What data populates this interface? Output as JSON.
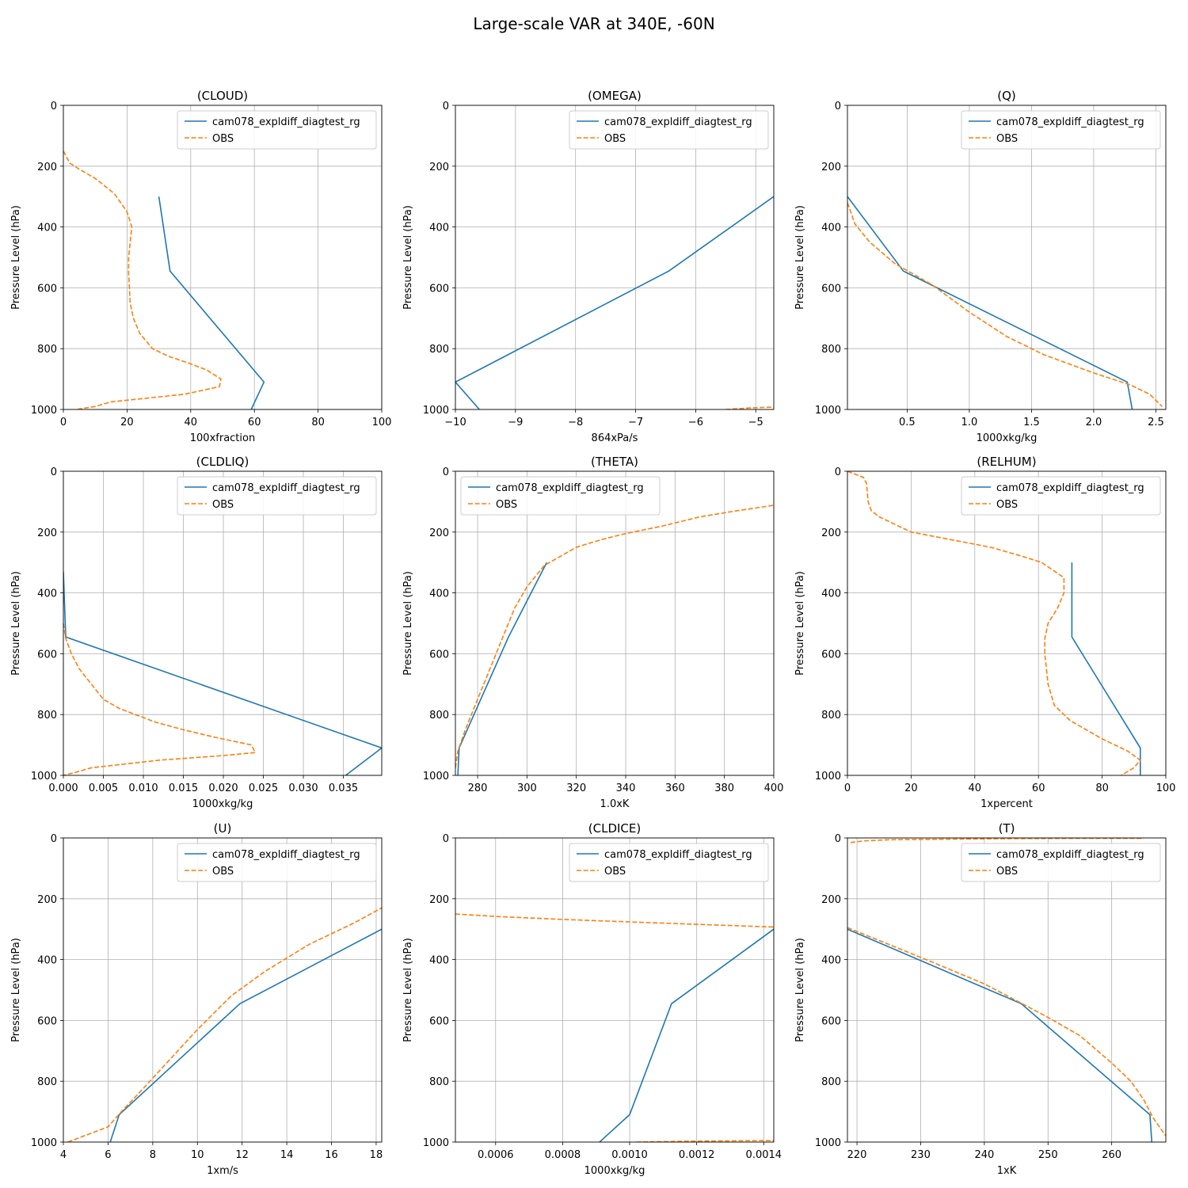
{
  "figure_title": "Large-scale VAR at 340E, -60N",
  "legend_labels": [
    "cam078_expldiff_diagtest_rg",
    "OBS"
  ],
  "colors": {
    "model": "#1f77b4",
    "obs": "#ff7f0e",
    "grid": "#b0b0b0"
  },
  "chart_data": [
    {
      "type": "line",
      "title": "(CLOUD)",
      "xlabel": "100xfraction",
      "ylabel": "Pressure Level (hPa)",
      "xlim": [
        0,
        100
      ],
      "ylim": [
        1000,
        0
      ],
      "xticks": [
        0,
        20,
        40,
        60,
        80,
        100
      ],
      "xtick_labels": [
        "0",
        "20",
        "40",
        "60",
        "80",
        "100"
      ],
      "yticks": [
        0,
        200,
        400,
        600,
        800,
        1000
      ],
      "ytick_labels": [
        "0",
        "200",
        "400",
        "600",
        "800",
        "1000"
      ],
      "legend": "upper right",
      "series": [
        {
          "name": "cam078_expldiff_diagtest_rg",
          "x": [
            30,
            33.5,
            63,
            59
          ],
          "y": [
            300,
            545,
            910,
            1000
          ]
        },
        {
          "name": "OBS",
          "x": [
            0,
            2,
            5,
            10,
            16,
            20,
            21.5,
            21,
            20.5,
            20.5,
            21,
            22,
            24,
            28,
            33,
            40,
            45,
            49.5,
            49,
            38,
            15,
            10,
            4
          ],
          "y": [
            150,
            190,
            210,
            240,
            290,
            350,
            400,
            450,
            500,
            550,
            650,
            700,
            750,
            800,
            825,
            850,
            870,
            900,
            925,
            950,
            975,
            990,
            1000
          ]
        }
      ]
    },
    {
      "type": "line",
      "title": "(OMEGA)",
      "xlabel": "864xPa/s",
      "ylabel": "Pressure Level (hPa)",
      "xlim": [
        -10,
        -4.7
      ],
      "ylim": [
        1000,
        0
      ],
      "xticks": [
        -10,
        -9,
        -8,
        -7,
        -6,
        -5
      ],
      "xtick_labels": [
        "−10",
        "−9",
        "−8",
        "−7",
        "−6",
        "−5"
      ],
      "yticks": [
        0,
        200,
        400,
        600,
        800,
        1000
      ],
      "ytick_labels": [
        "0",
        "200",
        "400",
        "600",
        "800",
        "1000"
      ],
      "legend": "upper right",
      "series": [
        {
          "name": "cam078_expldiff_diagtest_rg",
          "x": [
            -4.7,
            -6.45,
            -10,
            -9.6
          ],
          "y": [
            300,
            545,
            910,
            1000
          ]
        },
        {
          "name": "OBS",
          "x": [
            -5.5,
            -5.1,
            -4.7
          ],
          "y": [
            1000,
            995,
            992
          ]
        }
      ]
    },
    {
      "type": "line",
      "title": "(Q)",
      "xlabel": "1000xkg/kg",
      "ylabel": "Pressure Level (hPa)",
      "xlim": [
        0.02,
        2.58
      ],
      "ylim": [
        1000,
        0
      ],
      "xticks": [
        0.5,
        1.0,
        1.5,
        2.0,
        2.5
      ],
      "xtick_labels": [
        "0.5",
        "1.0",
        "1.5",
        "2.0",
        "2.5"
      ],
      "yticks": [
        0,
        200,
        400,
        600,
        800,
        1000
      ],
      "ytick_labels": [
        "0",
        "200",
        "400",
        "600",
        "800",
        "1000"
      ],
      "legend": "upper right",
      "series": [
        {
          "name": "cam078_expldiff_diagtest_rg",
          "x": [
            0.02,
            0.47,
            2.27,
            2.31
          ],
          "y": [
            300,
            545,
            910,
            1000
          ]
        },
        {
          "name": "OBS",
          "x": [
            0.02,
            0.08,
            0.2,
            0.4,
            0.7,
            1.0,
            1.3,
            1.6,
            2.0,
            2.3,
            2.45,
            2.55
          ],
          "y": [
            320,
            390,
            450,
            520,
            590,
            680,
            760,
            820,
            880,
            920,
            950,
            990
          ]
        }
      ]
    },
    {
      "type": "line",
      "title": "(CLDLIQ)",
      "xlabel": "1000xkg/kg",
      "ylabel": "Pressure Level (hPa)",
      "xlim": [
        0,
        0.0398
      ],
      "ylim": [
        1000,
        0
      ],
      "xticks": [
        0,
        0.005,
        0.01,
        0.015,
        0.02,
        0.025,
        0.03,
        0.035
      ],
      "xtick_labels": [
        "0.000",
        "0.005",
        "0.010",
        "0.015",
        "0.020",
        "0.025",
        "0.030",
        "0.035"
      ],
      "yticks": [
        0,
        200,
        400,
        600,
        800,
        1000
      ],
      "ytick_labels": [
        "0",
        "200",
        "400",
        "600",
        "800",
        "1000"
      ],
      "legend": "upper right",
      "series": [
        {
          "name": "cam078_expldiff_diagtest_rg",
          "x": [
            0,
            0.0003,
            0.0398,
            0.0353
          ],
          "y": [
            330,
            545,
            910,
            1000
          ]
        },
        {
          "name": "OBS",
          "x": [
            0,
            0.0003,
            0.001,
            0.002,
            0.0035,
            0.005,
            0.007,
            0.009,
            0.0115,
            0.015,
            0.019,
            0.0235,
            0.024,
            0.02,
            0.012,
            0.0035,
            0.0015,
            0
          ],
          "y": [
            500,
            550,
            600,
            650,
            700,
            750,
            780,
            800,
            825,
            850,
            875,
            900,
            925,
            935,
            950,
            975,
            990,
            1000
          ]
        }
      ]
    },
    {
      "type": "line",
      "title": "(THETA)",
      "xlabel": "1.0xK",
      "ylabel": "Pressure Level (hPa)",
      "xlim": [
        271,
        400
      ],
      "ylim": [
        1000,
        0
      ],
      "xticks": [
        280,
        300,
        320,
        340,
        360,
        380,
        400
      ],
      "xtick_labels": [
        "280",
        "300",
        "320",
        "340",
        "360",
        "380",
        "400"
      ],
      "yticks": [
        0,
        200,
        400,
        600,
        800,
        1000
      ],
      "ytick_labels": [
        "0",
        "200",
        "400",
        "600",
        "800",
        "1000"
      ],
      "legend": "upper left",
      "series": [
        {
          "name": "cam078_expldiff_diagtest_rg",
          "x": [
            308,
            292.5,
            272.5,
            272
          ],
          "y": [
            300,
            545,
            910,
            1000
          ]
        },
        {
          "name": "OBS",
          "x": [
            271,
            272,
            275,
            280,
            285,
            290,
            295,
            300,
            307,
            320,
            330,
            340,
            355,
            370,
            385,
            400
          ],
          "y": [
            975,
            920,
            850,
            750,
            650,
            550,
            450,
            380,
            310,
            250,
            225,
            205,
            180,
            150,
            130,
            112
          ]
        }
      ]
    },
    {
      "type": "line",
      "title": "(RELHUM)",
      "xlabel": "1xpercent",
      "ylabel": "Pressure Level (hPa)",
      "xlim": [
        0,
        100
      ],
      "ylim": [
        1000,
        0
      ],
      "xticks": [
        0,
        20,
        40,
        60,
        80,
        100
      ],
      "xtick_labels": [
        "0",
        "20",
        "40",
        "60",
        "80",
        "100"
      ],
      "yticks": [
        0,
        200,
        400,
        600,
        800,
        1000
      ],
      "ytick_labels": [
        "0",
        "200",
        "400",
        "600",
        "800",
        "1000"
      ],
      "legend": "upper right",
      "series": [
        {
          "name": "cam078_expldiff_diagtest_rg",
          "x": [
            70.5,
            70.5,
            92,
            92
          ],
          "y": [
            300,
            545,
            910,
            1000
          ]
        },
        {
          "name": "OBS",
          "x": [
            0,
            5,
            6,
            6.5,
            7.5,
            10,
            14,
            20,
            35,
            45,
            55,
            61,
            68,
            68,
            66,
            63,
            62,
            62,
            63,
            65,
            70,
            80,
            88,
            92,
            90,
            86
          ],
          "y": [
            0,
            20,
            40,
            100,
            130,
            150,
            170,
            200,
            230,
            250,
            280,
            300,
            350,
            400,
            450,
            500,
            550,
            600,
            700,
            770,
            820,
            880,
            920,
            950,
            975,
            1000
          ]
        }
      ]
    },
    {
      "type": "line",
      "title": "(U)",
      "xlabel": "1xm/s",
      "ylabel": "Pressure Level (hPa)",
      "xlim": [
        4,
        18.25
      ],
      "ylim": [
        1000,
        0
      ],
      "xticks": [
        4,
        6,
        8,
        10,
        12,
        14,
        16,
        18
      ],
      "xtick_labels": [
        "4",
        "6",
        "8",
        "10",
        "12",
        "14",
        "16",
        "18"
      ],
      "yticks": [
        0,
        200,
        400,
        600,
        800,
        1000
      ],
      "ytick_labels": [
        "0",
        "200",
        "400",
        "600",
        "800",
        "1000"
      ],
      "legend": "upper right",
      "series": [
        {
          "name": "cam078_expldiff_diagtest_rg",
          "x": [
            18.25,
            11.9,
            6.5,
            6.1
          ],
          "y": [
            300,
            545,
            910,
            1000
          ]
        },
        {
          "name": "OBS",
          "x": [
            4.2,
            6,
            6.6,
            7.5,
            8.5,
            10,
            11.5,
            13,
            15,
            17,
            18.25
          ],
          "y": [
            1000,
            950,
            900,
            830,
            750,
            630,
            520,
            440,
            350,
            280,
            230
          ]
        }
      ]
    },
    {
      "type": "line",
      "title": "(CLDICE)",
      "xlabel": "1000xkg/kg",
      "ylabel": "Pressure Level (hPa)",
      "xlim": [
        0.00048,
        0.00143
      ],
      "ylim": [
        1000,
        0
      ],
      "xticks": [
        0.0006,
        0.0008,
        0.001,
        0.0012,
        0.0014
      ],
      "xtick_labels": [
        "0.0006",
        "0.0008",
        "0.0010",
        "0.0012",
        "0.0014"
      ],
      "yticks": [
        0,
        200,
        400,
        600,
        800,
        1000
      ],
      "ytick_labels": [
        "0",
        "200",
        "400",
        "600",
        "800",
        "1000"
      ],
      "legend": "upper right",
      "series": [
        {
          "name": "cam078_expldiff_diagtest_rg",
          "x": [
            0.00143,
            0.001125,
            0.001,
            0.00091
          ],
          "y": [
            300,
            545,
            910,
            1000
          ]
        },
        {
          "name": "OBS",
          "x": [
            0.00048,
            0.0006,
            0.0008,
            0.001,
            0.0012,
            0.00143
          ],
          "y": [
            250,
            258,
            268,
            276,
            284,
            293
          ]
        },
        {
          "name": "OBS",
          "x": [
            0.00102,
            0.0012,
            0.00143
          ],
          "y": [
            1000,
            997,
            995
          ]
        }
      ]
    },
    {
      "type": "line",
      "title": "(T)",
      "xlabel": "1xK",
      "ylabel": "Pressure Level (hPa)",
      "xlim": [
        218.5,
        268.5
      ],
      "ylim": [
        1000,
        0
      ],
      "xticks": [
        220,
        230,
        240,
        250,
        260
      ],
      "xtick_labels": [
        "220",
        "230",
        "240",
        "250",
        "260"
      ],
      "yticks": [
        0,
        200,
        400,
        600,
        800,
        1000
      ],
      "ytick_labels": [
        "0",
        "200",
        "400",
        "600",
        "800",
        "1000"
      ],
      "legend": "upper right",
      "series": [
        {
          "name": "cam078_expldiff_diagtest_rg",
          "x": [
            218.5,
            245.8,
            266,
            266.3
          ],
          "y": [
            300,
            545,
            910,
            1000
          ]
        },
        {
          "name": "OBS",
          "x": [
            218.5,
            225,
            232,
            240,
            245.5,
            250,
            255,
            260,
            263,
            265,
            266.5,
            268.5
          ],
          "y": [
            295,
            350,
            410,
            480,
            540,
            590,
            650,
            740,
            800,
            860,
            920,
            980
          ]
        },
        {
          "name": "OBS",
          "x": [
            219,
            221,
            225,
            235,
            245,
            255,
            265
          ],
          "y": [
            15,
            10,
            6,
            4,
            2,
            1,
            1
          ]
        }
      ]
    }
  ]
}
